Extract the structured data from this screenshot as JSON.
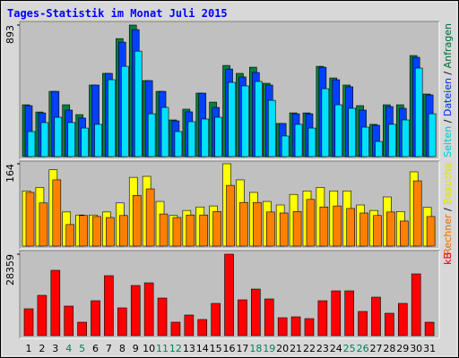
{
  "chart_data": {
    "type": "bar",
    "title": "Tages-Statistik im Monat Juli 2015",
    "categories": [
      "1",
      "2",
      "3",
      "4",
      "5",
      "6",
      "7",
      "8",
      "9",
      "10",
      "11",
      "12",
      "13",
      "14",
      "15",
      "16",
      "17",
      "18",
      "19",
      "20",
      "21",
      "22",
      "23",
      "24",
      "25",
      "26",
      "27",
      "28",
      "29",
      "30",
      "31"
    ],
    "category_colors": [
      "#000000",
      "#000000",
      "#000000",
      "#00805c",
      "#00805c",
      "#000000",
      "#000000",
      "#000000",
      "#000000",
      "#000000",
      "#00805c",
      "#00805c",
      "#000000",
      "#000000",
      "#000000",
      "#000000",
      "#000000",
      "#00805c",
      "#00805c",
      "#000000",
      "#000000",
      "#000000",
      "#000000",
      "#000000",
      "#00805c",
      "#00805c",
      "#000000",
      "#000000",
      "#000000",
      "#000000",
      "#000000"
    ],
    "legend_separator": " / ",
    "panels": [
      {
        "ylim": [
          0,
          893
        ],
        "yticks": [
          893
        ],
        "series": [
          {
            "name": "Anfragen",
            "color": "#008040",
            "values": [
              352,
              303,
              443,
              352,
              285,
              486,
              565,
              801,
              893,
              516,
              443,
              249,
              322,
              431,
              370,
              619,
              565,
              607,
              498,
              225,
              297,
              297,
              613,
              534,
              486,
              346,
              219,
              352,
              352,
              686,
              425
            ]
          },
          {
            "name": "Dateien",
            "color": "#0040ff",
            "values": [
              346,
              297,
              443,
              316,
              262,
              486,
              565,
              777,
              862,
              516,
              443,
              243,
              304,
              431,
              334,
              595,
              541,
              571,
              486,
              225,
              291,
              291,
              607,
              522,
              474,
              316,
              213,
              340,
              328,
              674,
              419
            ]
          },
          {
            "name": "Seiten",
            "color": "#00e0ff",
            "values": [
              170,
              231,
              267,
              231,
              194,
              219,
              522,
              613,
              716,
              291,
              334,
              170,
              237,
              255,
              267,
              504,
              480,
              510,
              382,
              140,
              219,
              194,
              461,
              352,
              328,
              200,
              103,
              219,
              249,
              601,
              291
            ]
          }
        ]
      },
      {
        "ylim": [
          0,
          164
        ],
        "yticks": [
          164
        ],
        "series": [
          {
            "name": "Besuche",
            "color": "#ffff00",
            "values": [
              110,
              117,
              152,
              68,
              62,
              62,
              68,
              86,
              137,
              139,
              89,
              61,
              71,
              78,
              80,
              164,
              132,
              107,
              89,
              82,
              103,
              110,
              117,
              110,
              110,
              82,
              71,
              98,
              69,
              148,
              77
            ]
          },
          {
            "name": "Rechner",
            "color": "#ff8000",
            "values": [
              107,
              86,
              132,
              43,
              61,
              59,
              57,
              61,
              101,
              114,
              64,
              57,
              62,
              62,
              69,
              121,
              87,
              87,
              68,
              66,
              69,
              93,
              78,
              80,
              75,
              66,
              61,
              68,
              50,
              130,
              59
            ]
          }
        ]
      },
      {
        "ylim": [
          0,
          28359
        ],
        "yticks": [
          28359
        ],
        "series": [
          {
            "name": "kB",
            "color": "#ff0000",
            "values": [
              9347,
              14022,
              22747,
              10282,
              4674,
              12152,
              20878,
              9659,
              17450,
              18385,
              13087,
              4674,
              7167,
              5609,
              11218,
              28359,
              12464,
              16203,
              12776,
              6232,
              6544,
              5921,
              12152,
              15580,
              15580,
              8413,
              13399,
              7790,
              11218,
              21501,
              4674
            ]
          }
        ]
      }
    ]
  }
}
